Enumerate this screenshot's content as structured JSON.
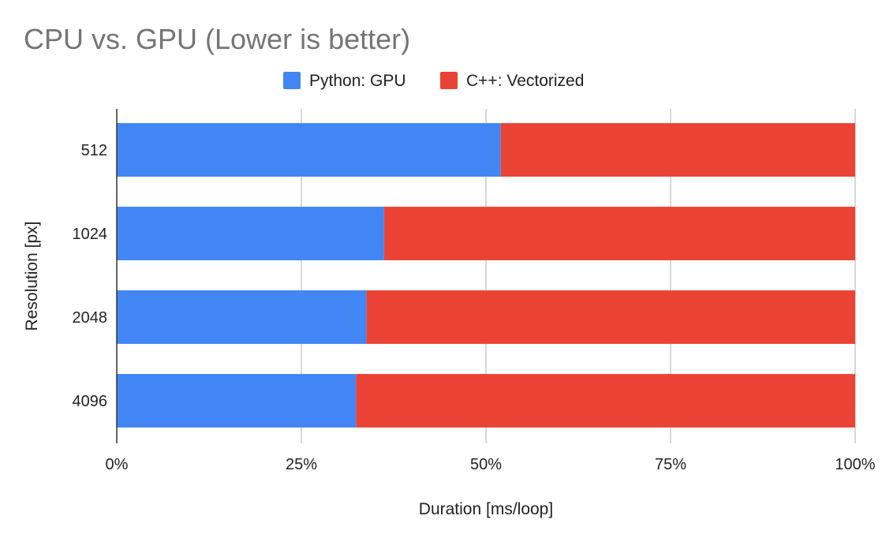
{
  "chart_data": {
    "type": "bar",
    "orientation": "horizontal",
    "stacked": "percent",
    "title": "CPU vs. GPU (Lower is better)",
    "xlabel": "Duration [ms/loop]",
    "ylabel": "Resolution [px]",
    "categories": [
      "512",
      "1024",
      "2048",
      "4096"
    ],
    "series": [
      {
        "name": "Python: GPU",
        "color": "#4285f4",
        "values": [
          52,
          36.2,
          33.8,
          32.4
        ]
      },
      {
        "name": "C++: Vectorized",
        "color": "#ea4335",
        "values": [
          48,
          63.8,
          66.2,
          67.6
        ]
      }
    ],
    "xlim": [
      0,
      100
    ],
    "xticks": [
      "0%",
      "25%",
      "50%",
      "75%",
      "100%"
    ],
    "grid": true,
    "legend_position": "top-center"
  }
}
